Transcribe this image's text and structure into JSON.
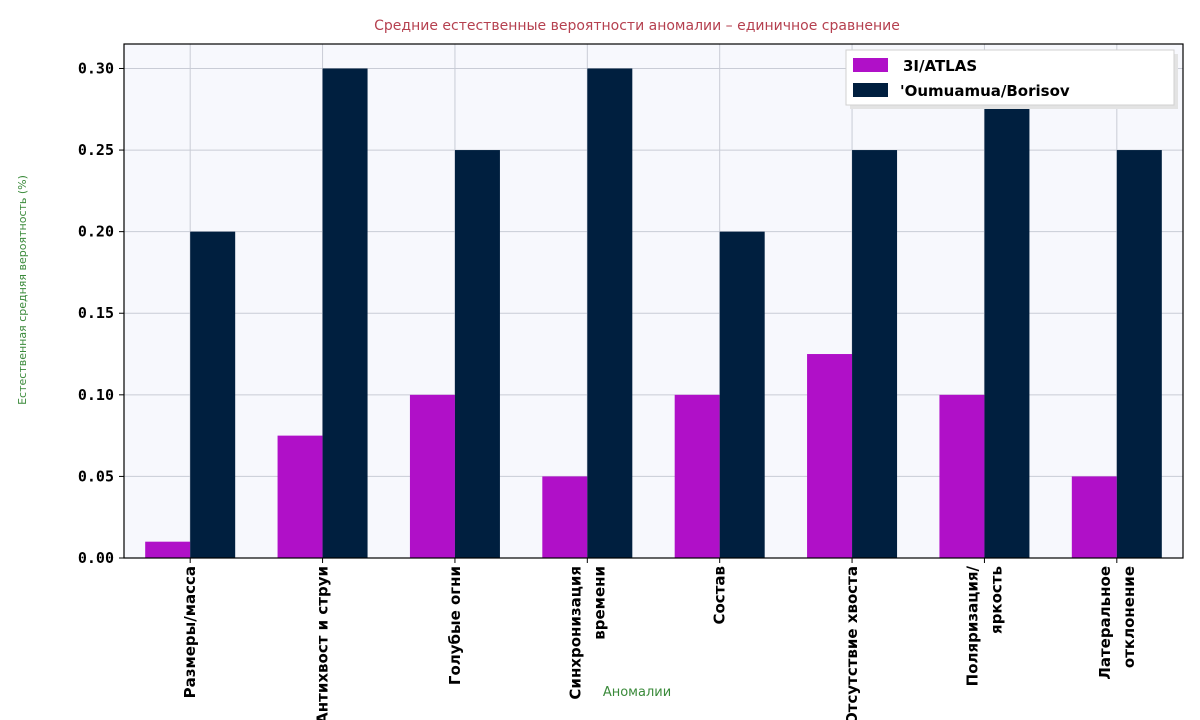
{
  "chart_data": {
    "type": "bar",
    "title": "Средние естественные вероятности аномалии – единичное сравнение",
    "xlabel": "Аномалии",
    "ylabel": "Естественная средняя вероятность (%)",
    "ylim": [
      0,
      0.315
    ],
    "yticks": [
      "0.00",
      "0.05",
      "0.10",
      "0.15",
      "0.20",
      "0.25",
      "0.30"
    ],
    "grid": true,
    "legend_position": "top-right",
    "categories": [
      [
        "Размеры/масса"
      ],
      [
        "Антихвост и струи"
      ],
      [
        "Голубые огни"
      ],
      [
        "Синхронизация",
        "времени"
      ],
      [
        "Состав"
      ],
      [
        "Отсутствие хвоста"
      ],
      [
        "Поляризация/",
        "яркость"
      ],
      [
        "Латеральное",
        "отклонение"
      ]
    ],
    "series": [
      {
        "name": "3I/ATLAS",
        "color": "#b010c8",
        "values": [
          0.01,
          0.075,
          0.1,
          0.05,
          0.1,
          0.125,
          0.1,
          0.05
        ]
      },
      {
        "name": "'Oumuamua/Borisov",
        "color": "#001f3f",
        "values": [
          0.2,
          0.3,
          0.25,
          0.3,
          0.2,
          0.25,
          0.28,
          0.25
        ]
      }
    ]
  }
}
